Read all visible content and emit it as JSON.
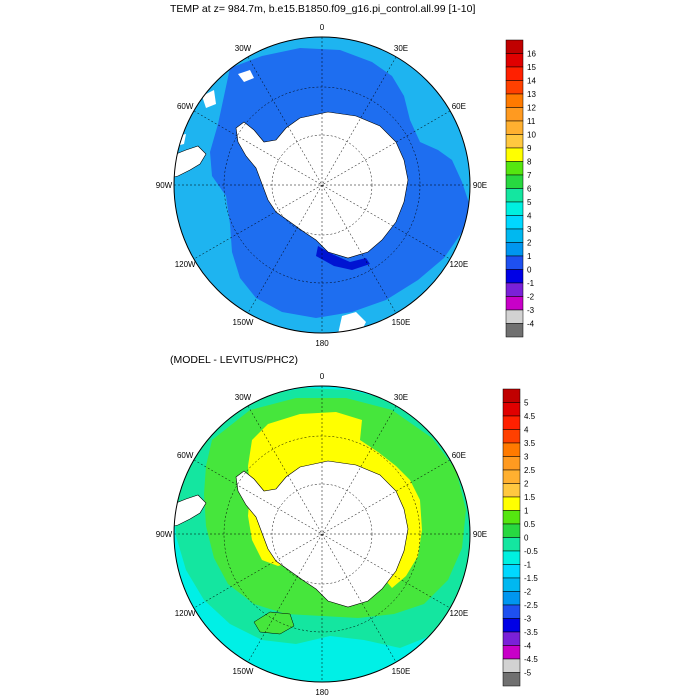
{
  "panel_top": {
    "title": "TEMP at z= 984.7m, b.e15.B1850.f09_g16.pi_control.all.99 [1-10]",
    "colorbar": {
      "labels": [
        "16",
        "15",
        "14",
        "13",
        "12",
        "11",
        "10",
        "9",
        "8",
        "7",
        "6",
        "5",
        "4",
        "3",
        "2",
        "1",
        "0",
        "-1",
        "-2",
        "-3",
        "-4"
      ],
      "colors": [
        "#c00000",
        "#e00000",
        "#ff2000",
        "#ff4000",
        "#ff7a00",
        "#ff9a20",
        "#ffb030",
        "#ffc840",
        "#ffff00",
        "#55e610",
        "#28d840",
        "#14e6a0",
        "#00f0e0",
        "#00d8ff",
        "#00b8f0",
        "#0096f0",
        "#1e50f0",
        "#0000e6",
        "#7a20d8",
        "#c800c8",
        "#d2d2d2",
        "#707070"
      ]
    },
    "lon_labels": [
      "0",
      "30E",
      "60E",
      "90E",
      "120E",
      "150E",
      "180",
      "150W",
      "120W",
      "90W",
      "60W",
      "30W"
    ]
  },
  "panel_bottom": {
    "title": "(MODEL - LEVITUS/PHC2)",
    "colorbar": {
      "labels": [
        "5",
        "4.5",
        "4",
        "3.5",
        "3",
        "2.5",
        "2",
        "1.5",
        "1",
        "0.5",
        "0",
        "-0.5",
        "-1",
        "-1.5",
        "-2",
        "-2.5",
        "-3",
        "-3.5",
        "-4",
        "-4.5",
        "-5"
      ],
      "colors": [
        "#c00000",
        "#e00000",
        "#ff2000",
        "#ff4000",
        "#ff7a00",
        "#ff9a20",
        "#ffb030",
        "#ffc840",
        "#ffff00",
        "#55e610",
        "#28d840",
        "#14e6a0",
        "#00f0e0",
        "#00d8ff",
        "#00b8f0",
        "#0096f0",
        "#1e50f0",
        "#0000e6",
        "#7a20d8",
        "#c800c8",
        "#d2d2d2",
        "#707070"
      ]
    },
    "lon_labels": [
      "0",
      "30E",
      "60E",
      "90E",
      "120E",
      "150E",
      "180",
      "150W",
      "120W",
      "90W",
      "60W",
      "30W"
    ]
  },
  "palette": {
    "light_blue": "#1eb4f0",
    "mid_blue": "#1e6ef0",
    "deep_blue": "#0014d2",
    "green": "#46e63c",
    "teal": "#14e6a0",
    "cyan": "#00f0e6",
    "yellow": "#ffff00",
    "land": "#ffffff"
  }
}
